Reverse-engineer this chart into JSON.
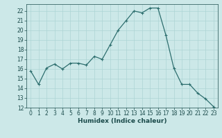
{
  "x": [
    0,
    1,
    2,
    3,
    4,
    5,
    6,
    7,
    8,
    9,
    10,
    11,
    12,
    13,
    14,
    15,
    16,
    17,
    18,
    19,
    20,
    21,
    22,
    23
  ],
  "y": [
    15.8,
    14.4,
    16.1,
    16.5,
    16.0,
    16.6,
    16.6,
    16.4,
    17.3,
    17.0,
    18.5,
    20.0,
    21.0,
    22.0,
    21.8,
    22.3,
    22.3,
    19.5,
    16.1,
    14.4,
    14.4,
    13.5,
    12.9,
    12.1
  ],
  "xlabel": "Humidex (Indice chaleur)",
  "line_color": "#2d6e6e",
  "marker": "+",
  "bg_color": "#cce8e8",
  "grid_color": "#add4d4",
  "ylim_min": 12,
  "ylim_max": 22.7,
  "xlim_min": -0.5,
  "xlim_max": 23.5,
  "yticks": [
    12,
    13,
    14,
    15,
    16,
    17,
    18,
    19,
    20,
    21,
    22
  ],
  "xticks": [
    0,
    1,
    2,
    3,
    4,
    5,
    6,
    7,
    8,
    9,
    10,
    11,
    12,
    13,
    14,
    15,
    16,
    17,
    18,
    19,
    20,
    21,
    22,
    23
  ],
  "tick_fontsize": 5.5,
  "xlabel_fontsize": 6.5
}
